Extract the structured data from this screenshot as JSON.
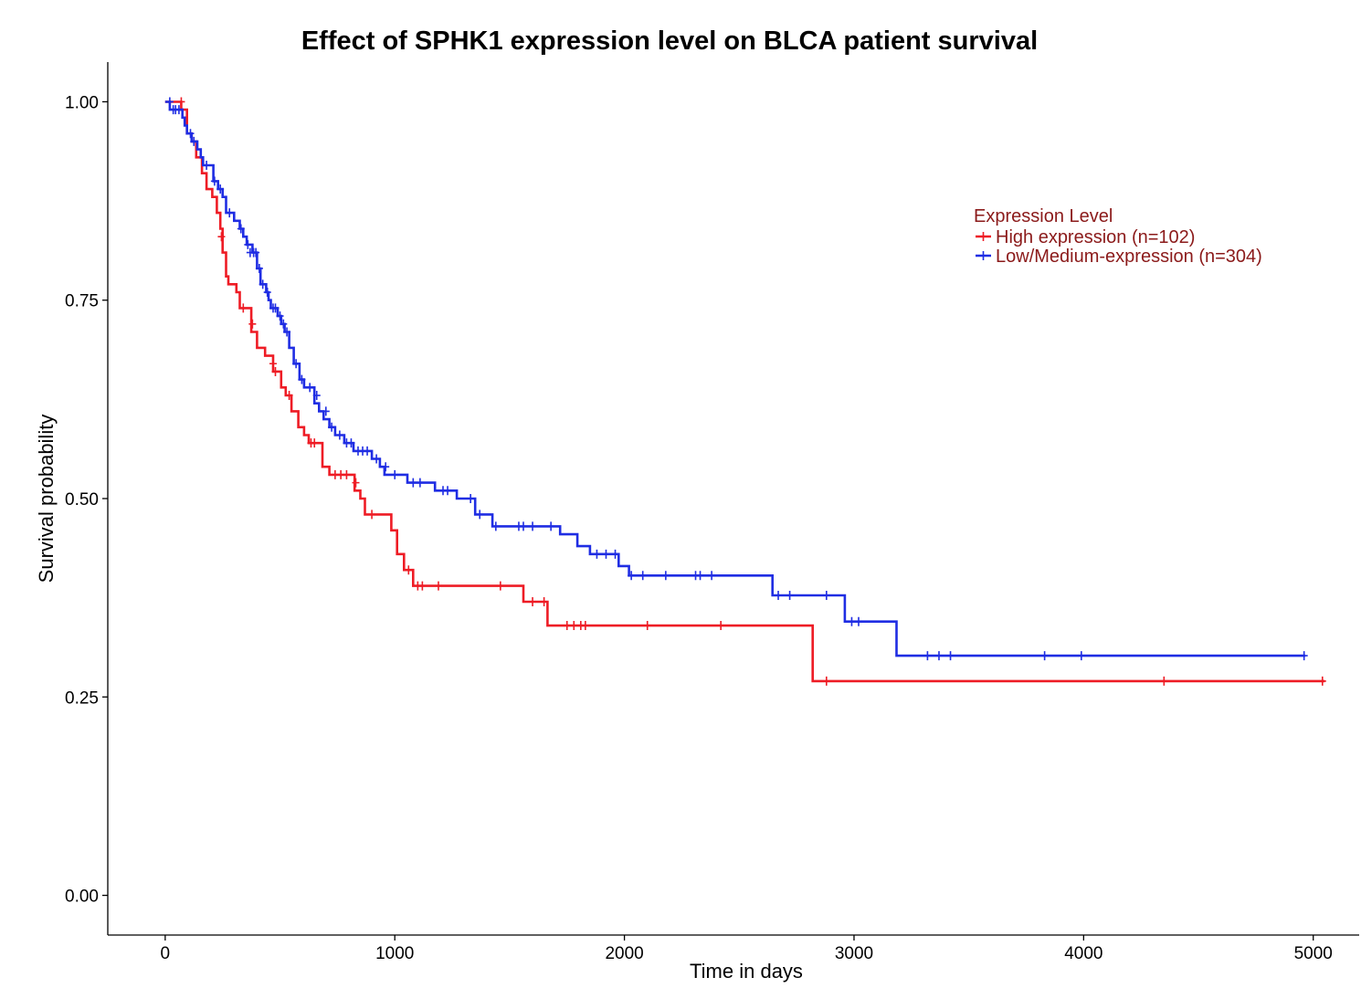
{
  "chart_data": {
    "type": "line",
    "title": "Effect of SPHK1 expression level on BLCA patient survival",
    "xlabel": "Time in days",
    "ylabel": "Survival probability",
    "xlim": [
      -250,
      5200
    ],
    "ylim": [
      -0.05,
      1.05
    ],
    "xticks": [
      0,
      1000,
      2000,
      3000,
      4000,
      5000
    ],
    "xtick_labels": [
      "0",
      "1000",
      "2000",
      "3000",
      "4000",
      "5000"
    ],
    "yticks": [
      0,
      0.25,
      0.5,
      0.75,
      1.0
    ],
    "ytick_labels": [
      "0.00",
      "0.25",
      "0.50",
      "0.75",
      "1.00"
    ],
    "grid": false,
    "legend": {
      "title": "Expression Level",
      "position": "top-right",
      "text_color": "#8b1a1a"
    },
    "series": [
      {
        "name": "High expression (n=102)",
        "color": "#ee1c25",
        "points": [
          [
            0,
            1.0
          ],
          [
            70,
            1.0
          ],
          [
            70,
            0.99
          ],
          [
            95,
            0.99
          ],
          [
            95,
            0.96
          ],
          [
            115,
            0.96
          ],
          [
            115,
            0.95
          ],
          [
            135,
            0.95
          ],
          [
            135,
            0.93
          ],
          [
            160,
            0.93
          ],
          [
            160,
            0.91
          ],
          [
            180,
            0.91
          ],
          [
            180,
            0.89
          ],
          [
            205,
            0.89
          ],
          [
            205,
            0.88
          ],
          [
            225,
            0.88
          ],
          [
            225,
            0.86
          ],
          [
            240,
            0.86
          ],
          [
            240,
            0.84
          ],
          [
            250,
            0.84
          ],
          [
            250,
            0.81
          ],
          [
            265,
            0.81
          ],
          [
            265,
            0.78
          ],
          [
            275,
            0.78
          ],
          [
            275,
            0.77
          ],
          [
            310,
            0.77
          ],
          [
            310,
            0.76
          ],
          [
            325,
            0.76
          ],
          [
            325,
            0.74
          ],
          [
            375,
            0.74
          ],
          [
            375,
            0.71
          ],
          [
            400,
            0.71
          ],
          [
            400,
            0.69
          ],
          [
            435,
            0.69
          ],
          [
            435,
            0.68
          ],
          [
            470,
            0.68
          ],
          [
            470,
            0.66
          ],
          [
            505,
            0.66
          ],
          [
            505,
            0.64
          ],
          [
            525,
            0.64
          ],
          [
            525,
            0.63
          ],
          [
            550,
            0.63
          ],
          [
            550,
            0.61
          ],
          [
            580,
            0.61
          ],
          [
            580,
            0.59
          ],
          [
            605,
            0.59
          ],
          [
            605,
            0.58
          ],
          [
            625,
            0.58
          ],
          [
            625,
            0.57
          ],
          [
            685,
            0.57
          ],
          [
            685,
            0.54
          ],
          [
            715,
            0.54
          ],
          [
            715,
            0.53
          ],
          [
            825,
            0.53
          ],
          [
            825,
            0.51
          ],
          [
            850,
            0.51
          ],
          [
            850,
            0.5
          ],
          [
            870,
            0.5
          ],
          [
            870,
            0.48
          ],
          [
            985,
            0.48
          ],
          [
            985,
            0.46
          ],
          [
            1010,
            0.46
          ],
          [
            1010,
            0.43
          ],
          [
            1040,
            0.43
          ],
          [
            1040,
            0.41
          ],
          [
            1080,
            0.41
          ],
          [
            1080,
            0.39
          ],
          [
            1560,
            0.39
          ],
          [
            1560,
            0.37
          ],
          [
            1665,
            0.37
          ],
          [
            1665,
            0.34
          ],
          [
            2820,
            0.34
          ],
          [
            2820,
            0.27
          ],
          [
            5050,
            0.27
          ]
        ],
        "censors": [
          [
            70,
            1.0
          ],
          [
            245,
            0.83
          ],
          [
            340,
            0.74
          ],
          [
            380,
            0.72
          ],
          [
            470,
            0.67
          ],
          [
            480,
            0.66
          ],
          [
            540,
            0.63
          ],
          [
            635,
            0.57
          ],
          [
            650,
            0.57
          ],
          [
            740,
            0.53
          ],
          [
            765,
            0.53
          ],
          [
            790,
            0.53
          ],
          [
            830,
            0.52
          ],
          [
            900,
            0.48
          ],
          [
            1060,
            0.41
          ],
          [
            1100,
            0.39
          ],
          [
            1120,
            0.39
          ],
          [
            1190,
            0.39
          ],
          [
            1460,
            0.39
          ],
          [
            1600,
            0.37
          ],
          [
            1650,
            0.37
          ],
          [
            1750,
            0.34
          ],
          [
            1780,
            0.34
          ],
          [
            1810,
            0.34
          ],
          [
            1830,
            0.34
          ],
          [
            2100,
            0.34
          ],
          [
            2420,
            0.34
          ],
          [
            2880,
            0.27
          ],
          [
            4350,
            0.27
          ],
          [
            5040,
            0.27
          ]
        ]
      },
      {
        "name": "Low/Medium-expression (n=304)",
        "color": "#1f2de3",
        "points": [
          [
            0,
            1.0
          ],
          [
            20,
            1.0
          ],
          [
            20,
            0.99
          ],
          [
            75,
            0.99
          ],
          [
            75,
            0.98
          ],
          [
            85,
            0.98
          ],
          [
            85,
            0.97
          ],
          [
            95,
            0.97
          ],
          [
            95,
            0.96
          ],
          [
            115,
            0.96
          ],
          [
            115,
            0.95
          ],
          [
            140,
            0.95
          ],
          [
            140,
            0.94
          ],
          [
            155,
            0.94
          ],
          [
            155,
            0.93
          ],
          [
            165,
            0.93
          ],
          [
            165,
            0.92
          ],
          [
            210,
            0.92
          ],
          [
            210,
            0.9
          ],
          [
            230,
            0.9
          ],
          [
            230,
            0.89
          ],
          [
            250,
            0.89
          ],
          [
            250,
            0.88
          ],
          [
            265,
            0.88
          ],
          [
            265,
            0.86
          ],
          [
            300,
            0.86
          ],
          [
            300,
            0.85
          ],
          [
            325,
            0.85
          ],
          [
            325,
            0.84
          ],
          [
            340,
            0.84
          ],
          [
            340,
            0.83
          ],
          [
            355,
            0.83
          ],
          [
            355,
            0.82
          ],
          [
            380,
            0.82
          ],
          [
            380,
            0.81
          ],
          [
            400,
            0.81
          ],
          [
            400,
            0.79
          ],
          [
            415,
            0.79
          ],
          [
            415,
            0.77
          ],
          [
            440,
            0.77
          ],
          [
            440,
            0.76
          ],
          [
            450,
            0.76
          ],
          [
            450,
            0.75
          ],
          [
            460,
            0.75
          ],
          [
            460,
            0.74
          ],
          [
            490,
            0.74
          ],
          [
            490,
            0.73
          ],
          [
            505,
            0.73
          ],
          [
            505,
            0.72
          ],
          [
            520,
            0.72
          ],
          [
            520,
            0.71
          ],
          [
            540,
            0.71
          ],
          [
            540,
            0.69
          ],
          [
            560,
            0.69
          ],
          [
            560,
            0.67
          ],
          [
            585,
            0.67
          ],
          [
            585,
            0.65
          ],
          [
            605,
            0.65
          ],
          [
            605,
            0.64
          ],
          [
            650,
            0.64
          ],
          [
            650,
            0.62
          ],
          [
            670,
            0.62
          ],
          [
            670,
            0.61
          ],
          [
            690,
            0.61
          ],
          [
            690,
            0.6
          ],
          [
            715,
            0.6
          ],
          [
            715,
            0.59
          ],
          [
            740,
            0.59
          ],
          [
            740,
            0.58
          ],
          [
            780,
            0.58
          ],
          [
            780,
            0.57
          ],
          [
            820,
            0.57
          ],
          [
            820,
            0.56
          ],
          [
            900,
            0.56
          ],
          [
            900,
            0.55
          ],
          [
            935,
            0.55
          ],
          [
            935,
            0.54
          ],
          [
            955,
            0.54
          ],
          [
            955,
            0.53
          ],
          [
            1055,
            0.53
          ],
          [
            1055,
            0.52
          ],
          [
            1175,
            0.52
          ],
          [
            1175,
            0.51
          ],
          [
            1270,
            0.51
          ],
          [
            1270,
            0.5
          ],
          [
            1350,
            0.5
          ],
          [
            1350,
            0.48
          ],
          [
            1425,
            0.48
          ],
          [
            1425,
            0.465
          ],
          [
            1720,
            0.465
          ],
          [
            1720,
            0.455
          ],
          [
            1795,
            0.455
          ],
          [
            1795,
            0.44
          ],
          [
            1850,
            0.44
          ],
          [
            1850,
            0.43
          ],
          [
            1975,
            0.43
          ],
          [
            1975,
            0.415
          ],
          [
            2020,
            0.415
          ],
          [
            2020,
            0.403
          ],
          [
            2645,
            0.403
          ],
          [
            2645,
            0.378
          ],
          [
            2960,
            0.378
          ],
          [
            2960,
            0.345
          ],
          [
            3185,
            0.345
          ],
          [
            3185,
            0.302
          ],
          [
            4965,
            0.302
          ]
        ],
        "censors": [
          [
            20,
            1.0
          ],
          [
            35,
            0.99
          ],
          [
            45,
            0.99
          ],
          [
            60,
            0.99
          ],
          [
            110,
            0.96
          ],
          [
            125,
            0.95
          ],
          [
            180,
            0.92
          ],
          [
            215,
            0.9
          ],
          [
            240,
            0.89
          ],
          [
            280,
            0.86
          ],
          [
            330,
            0.84
          ],
          [
            360,
            0.82
          ],
          [
            370,
            0.81
          ],
          [
            385,
            0.81
          ],
          [
            395,
            0.81
          ],
          [
            410,
            0.79
          ],
          [
            425,
            0.77
          ],
          [
            445,
            0.76
          ],
          [
            470,
            0.74
          ],
          [
            480,
            0.74
          ],
          [
            500,
            0.73
          ],
          [
            515,
            0.72
          ],
          [
            530,
            0.71
          ],
          [
            570,
            0.67
          ],
          [
            595,
            0.65
          ],
          [
            630,
            0.64
          ],
          [
            660,
            0.63
          ],
          [
            700,
            0.61
          ],
          [
            725,
            0.59
          ],
          [
            760,
            0.58
          ],
          [
            790,
            0.57
          ],
          [
            810,
            0.57
          ],
          [
            840,
            0.56
          ],
          [
            860,
            0.56
          ],
          [
            880,
            0.56
          ],
          [
            920,
            0.55
          ],
          [
            960,
            0.54
          ],
          [
            1000,
            0.53
          ],
          [
            1080,
            0.52
          ],
          [
            1110,
            0.52
          ],
          [
            1210,
            0.51
          ],
          [
            1230,
            0.51
          ],
          [
            1330,
            0.5
          ],
          [
            1370,
            0.48
          ],
          [
            1440,
            0.465
          ],
          [
            1540,
            0.465
          ],
          [
            1560,
            0.465
          ],
          [
            1600,
            0.465
          ],
          [
            1680,
            0.465
          ],
          [
            1880,
            0.43
          ],
          [
            1920,
            0.43
          ],
          [
            1960,
            0.43
          ],
          [
            2030,
            0.403
          ],
          [
            2080,
            0.403
          ],
          [
            2180,
            0.403
          ],
          [
            2310,
            0.403
          ],
          [
            2330,
            0.403
          ],
          [
            2380,
            0.403
          ],
          [
            2670,
            0.378
          ],
          [
            2720,
            0.378
          ],
          [
            2880,
            0.378
          ],
          [
            2990,
            0.345
          ],
          [
            3020,
            0.345
          ],
          [
            3320,
            0.302
          ],
          [
            3370,
            0.302
          ],
          [
            3420,
            0.302
          ],
          [
            3830,
            0.302
          ],
          [
            3990,
            0.302
          ],
          [
            4960,
            0.302
          ]
        ]
      }
    ]
  }
}
